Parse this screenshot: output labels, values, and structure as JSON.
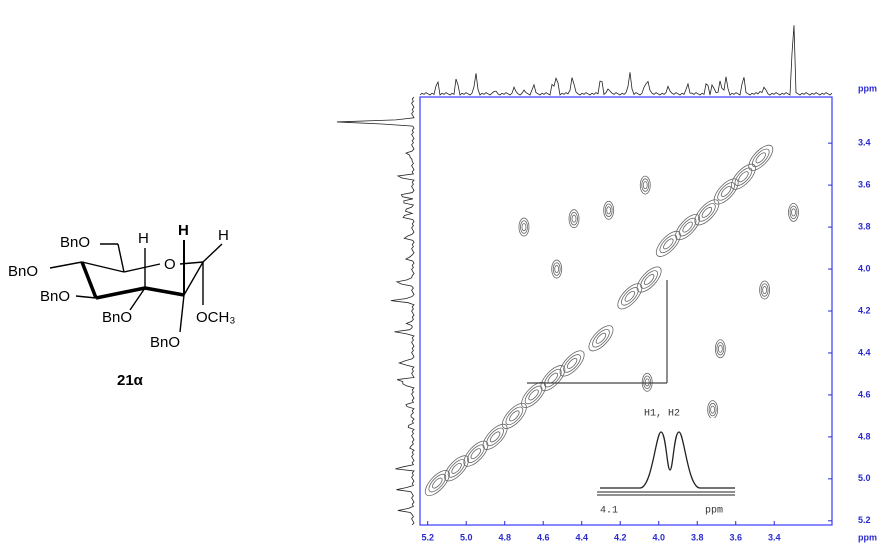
{
  "structure": {
    "labels": [
      "BnO",
      "BnO",
      "BnO",
      "BnO",
      "BnO",
      "H",
      "H",
      "H",
      "O",
      "OCH₃"
    ],
    "compound": "21α"
  },
  "chart_data": {
    "type": "contour",
    "x": [
      3.47,
      3.56,
      3.65,
      3.75,
      3.85,
      3.95,
      4.05,
      4.15,
      4.3,
      4.45,
      4.55,
      4.65,
      4.75,
      4.85,
      4.95,
      5.05,
      5.15,
      4.07,
      4.44,
      4.26,
      4.7,
      4.53,
      4.06,
      3.68,
      3.72,
      3.45,
      3.3
    ],
    "values": [
      3.47,
      3.56,
      3.63,
      3.73,
      3.8,
      3.88,
      4.05,
      4.13,
      4.33,
      4.45,
      4.52,
      4.6,
      4.7,
      4.8,
      4.88,
      4.95,
      5.02,
      3.6,
      3.76,
      3.72,
      3.8,
      4.0,
      4.54,
      4.38,
      4.67,
      4.1,
      3.73
    ],
    "xlim": [
      5.24,
      3.1
    ],
    "ylim": [
      3.18,
      5.22
    ],
    "xticks": [
      5.2,
      {
        "value": 5,
        "label": "5.0"
      },
      4.8,
      4.6,
      4.4,
      4.2,
      {
        "value": 4,
        "label": "4.0"
      },
      3.8,
      3.6,
      3.4
    ],
    "yticks": [
      3.4,
      3.6,
      3.8,
      {
        "value": 4,
        "label": "4.0"
      },
      4.2,
      4.4,
      4.6,
      4.8,
      {
        "value": 5,
        "label": "5.0"
      },
      5.2
    ],
    "x_label": "ppm",
    "y_label": "ppm",
    "color": "#2a2ad0",
    "inset": {
      "title": "H1, H2",
      "xticks": [
        4.1
      ],
      "x_label": "ppm"
    }
  }
}
